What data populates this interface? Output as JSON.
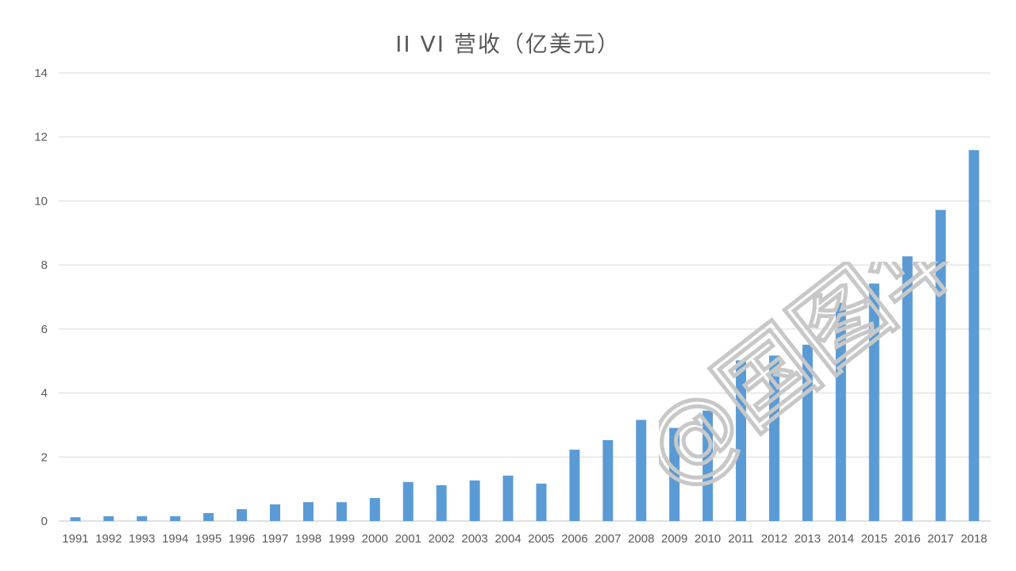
{
  "chart_data": {
    "type": "bar",
    "title": "II VI 营收（亿美元）",
    "xlabel": "",
    "ylabel": "",
    "ylim": [
      0,
      14
    ],
    "yticks": [
      0,
      2,
      4,
      6,
      8,
      10,
      12,
      14
    ],
    "grid": true,
    "legend": "none",
    "bar_color": "#5b9bd5",
    "categories": [
      "1991",
      "1992",
      "1993",
      "1994",
      "1995",
      "1996",
      "1997",
      "1998",
      "1999",
      "2000",
      "2001",
      "2002",
      "2003",
      "2004",
      "2005",
      "2006",
      "2007",
      "2008",
      "2009",
      "2010",
      "2011",
      "2012",
      "2013",
      "2014",
      "2015",
      "2016",
      "2017",
      "2018"
    ],
    "values": [
      0.12,
      0.15,
      0.15,
      0.15,
      0.25,
      0.37,
      0.52,
      0.59,
      0.59,
      0.72,
      1.22,
      1.12,
      1.27,
      1.42,
      1.17,
      2.23,
      2.53,
      3.16,
      2.91,
      3.45,
      5.02,
      5.17,
      5.51,
      6.82,
      7.42,
      8.27,
      9.72,
      11.59
    ]
  },
  "watermark": {
    "text": "@国图华",
    "color": "#c8c8c8"
  }
}
